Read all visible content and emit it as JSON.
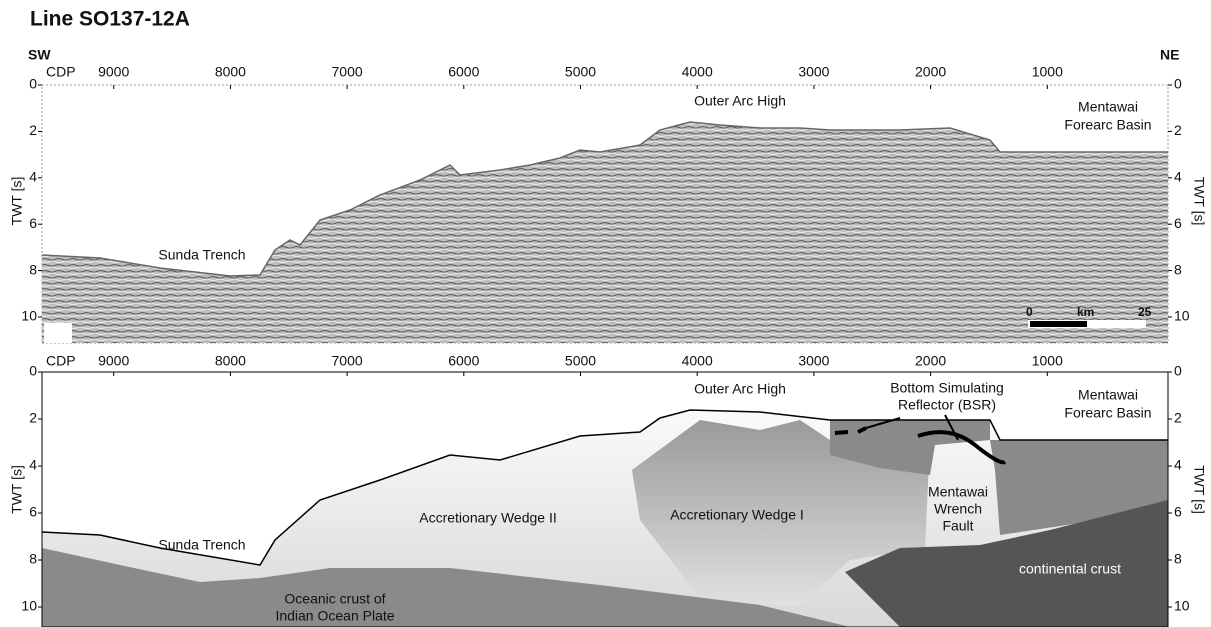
{
  "title": "Line SO137-12A",
  "orientation": {
    "left": "SW",
    "right": "NE"
  },
  "axes": {
    "x_label": "CDP",
    "cdp_ticks": [
      9000,
      8000,
      7000,
      6000,
      5000,
      4000,
      3000,
      2000,
      1000
    ],
    "y_label": "TWT [s]",
    "twt_ticks": [
      0,
      2,
      4,
      6,
      8,
      10
    ]
  },
  "top_panel": {
    "labels": {
      "outer_arc_high": "Outer Arc High",
      "forearc_basin": [
        "Mentawai",
        "Forearc Basin"
      ],
      "sunda_trench": "Sunda Trench"
    },
    "scale_bar": {
      "start": "0",
      "unit": "km",
      "end": "25"
    }
  },
  "bottom_panel": {
    "labels": {
      "outer_arc_high": "Outer Arc High",
      "bsr": [
        "Bottom Simulating",
        "Reflector (BSR)"
      ],
      "forearc_basin": [
        "Mentawai",
        "Forearc Basin"
      ],
      "wedge_2": "Accretionary Wedge II",
      "wedge_1": "Accretionary Wedge I",
      "wrench_fault": [
        "Mentawai",
        "Wrench",
        "Fault"
      ],
      "sunda_trench": "Sunda Trench",
      "oceanic_crust": [
        "Oceanic crust of",
        "Indian Ocean Plate"
      ],
      "continental_crust": "continental crust"
    }
  }
}
